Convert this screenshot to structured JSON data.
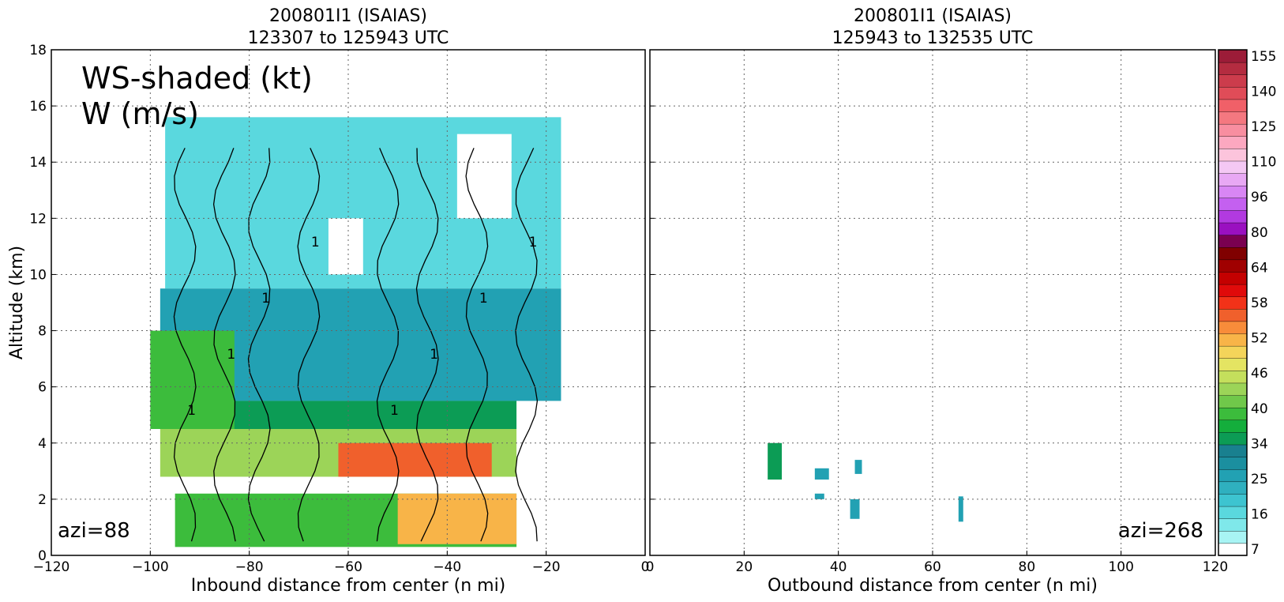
{
  "figure": {
    "ylabel": "Altitude (km)",
    "annotation_line1": "WS-shaded (kt)",
    "annotation_line2": "W (m/s)"
  },
  "chart_data": [
    {
      "type": "heatmap",
      "title_line1": "200801I1 (ISAIAS)",
      "title_line2": "123307 to 125943 UTC",
      "xlabel": "Inbound distance from center (n mi)",
      "ylabel": "Altitude (km)",
      "xlim": [
        -120,
        0
      ],
      "ylim": [
        0,
        18
      ],
      "xticks": [
        -120,
        -100,
        -80,
        -60,
        -40,
        -20,
        0
      ],
      "yticks": [
        0,
        2,
        4,
        6,
        8,
        10,
        12,
        14,
        16,
        18
      ],
      "grid": true,
      "annotation": "azi=88",
      "contour_label": "1",
      "wind_bands_kt": [
        {
          "x0": -97,
          "x1": -17,
          "z0": 9.5,
          "z1": 15.6,
          "ws": 16
        },
        {
          "x0": -98,
          "x1": -17,
          "z0": 5.5,
          "z1": 9.5,
          "ws": 25
        },
        {
          "x0": -99,
          "x1": -26,
          "z0": 4.5,
          "z1": 5.5,
          "ws": 34
        },
        {
          "x0": -98,
          "x1": -26,
          "z0": 2.8,
          "z1": 4.5,
          "ws": 43
        },
        {
          "x0": -95,
          "x1": -26,
          "z0": 0.3,
          "z1": 2.2,
          "ws": 40
        },
        {
          "x0": -62,
          "x1": -31,
          "z0": 2.8,
          "z1": 4,
          "ws": 55
        },
        {
          "x0": -50,
          "x1": -26,
          "z0": 0.4,
          "z1": 2.2,
          "ws": 52
        },
        {
          "x0": -100,
          "x1": -83,
          "z0": 4.5,
          "z1": 8,
          "ws": 40
        },
        {
          "x0": -64,
          "x1": -57,
          "z0": 10,
          "z1": 12,
          "ws": 7
        },
        {
          "x0": -38,
          "x1": -27,
          "z0": 12,
          "z1": 15,
          "ws": 7
        }
      ]
    },
    {
      "type": "heatmap",
      "title_line1": "200801I1 (ISAIAS)",
      "title_line2": "125943 to 132535 UTC",
      "xlabel": "Outbound distance from center (n mi)",
      "xlim": [
        0,
        120
      ],
      "ylim": [
        0,
        18
      ],
      "xticks": [
        0,
        20,
        40,
        60,
        80,
        100,
        120
      ],
      "yticks": [
        0,
        2,
        4,
        6,
        8,
        10,
        12,
        14,
        16,
        18
      ],
      "grid": true,
      "annotation": "azi=268",
      "patches_kt": [
        {
          "x0": 25,
          "x1": 28,
          "z0": 2.7,
          "z1": 4,
          "ws": 34
        },
        {
          "x0": 35,
          "x1": 38,
          "z0": 2.7,
          "z1": 3.1,
          "ws": 25
        },
        {
          "x0": 35,
          "x1": 37,
          "z0": 2,
          "z1": 2.2,
          "ws": 25
        },
        {
          "x0": 43.5,
          "x1": 45,
          "z0": 2.9,
          "z1": 3.4,
          "ws": 25
        },
        {
          "x0": 42.5,
          "x1": 44.5,
          "z0": 1.3,
          "z1": 2,
          "ws": 25
        },
        {
          "x0": 65.5,
          "x1": 66.5,
          "z0": 1.2,
          "z1": 2.1,
          "ws": 25
        }
      ]
    }
  ],
  "colorbar": {
    "label_values": [
      "7",
      "16",
      "25",
      "34",
      "40",
      "46",
      "52",
      "58",
      "64",
      "80",
      "96",
      "110",
      "125",
      "140",
      "155"
    ],
    "colors": [
      "#ffffff",
      "#a8f4f4",
      "#7fe8ea",
      "#5ad8de",
      "#3dc4d0",
      "#2fb0bf",
      "#22a1b3",
      "#1b8f9f",
      "#19808f",
      "#0c9c55",
      "#14ae3c",
      "#3cbc3c",
      "#70c84a",
      "#9cd458",
      "#c4df5c",
      "#e4e462",
      "#f4d45a",
      "#f8b448",
      "#f88c3a",
      "#f0602c",
      "#f23218",
      "#e00a0a",
      "#c40000",
      "#a00000",
      "#800000",
      "#7a0050",
      "#9a10c0",
      "#b23ae0",
      "#c460f0",
      "#d886f4",
      "#e8a8f4",
      "#f4c8f4",
      "#fcc4dc",
      "#fca8c0",
      "#f88ea0",
      "#f47880",
      "#f06068",
      "#e04c58",
      "#cc3c4c",
      "#b42c40",
      "#9c1c38"
    ]
  }
}
